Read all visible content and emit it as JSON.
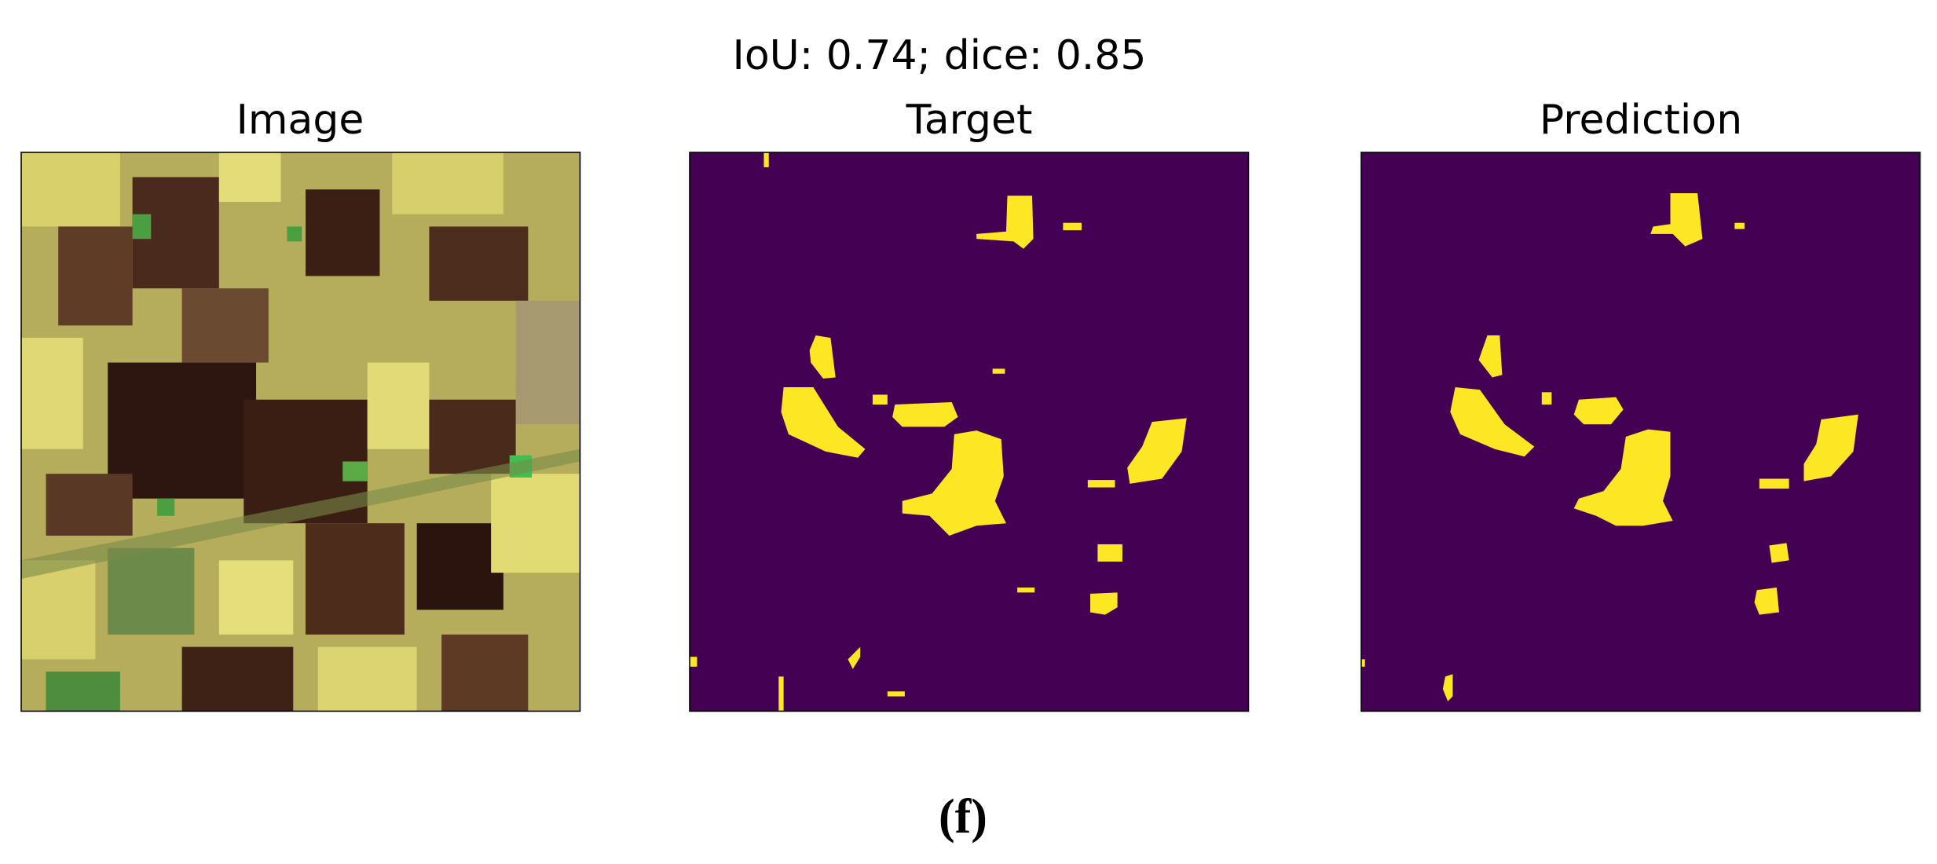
{
  "figure": {
    "title": "IoU: 0.74; dice: 0.85",
    "panels": [
      {
        "title": "Image"
      },
      {
        "title": "Target"
      },
      {
        "title": "Prediction"
      }
    ],
    "caption": "(f)"
  }
}
